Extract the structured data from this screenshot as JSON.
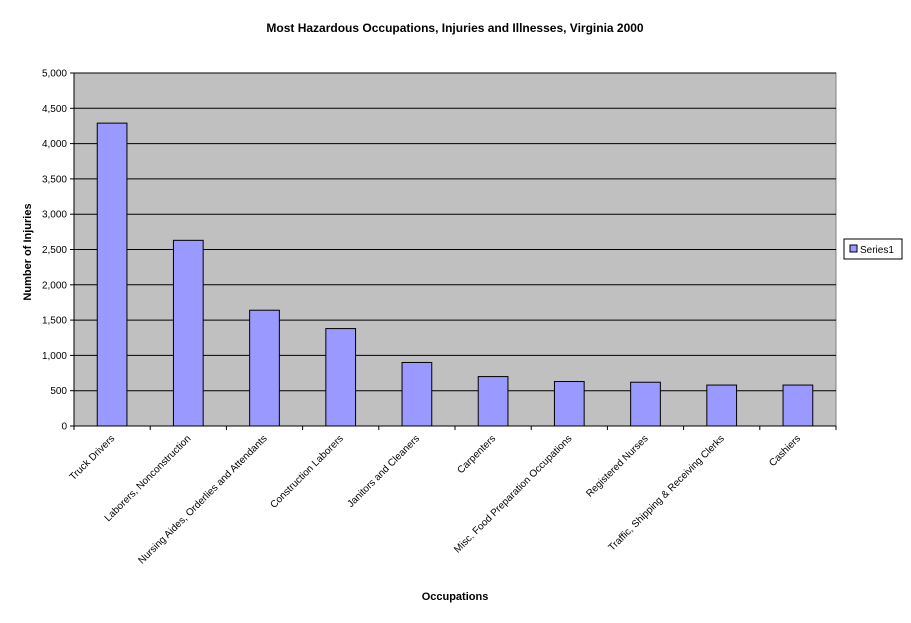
{
  "chart_data": {
    "type": "bar",
    "title": "Most Hazardous Occupations, Injuries and Illnesses, Virginia 2000",
    "xlabel": "Occupations",
    "ylabel": "Number of Injuries",
    "ylim": [
      0,
      5000
    ],
    "yticks": [
      "0",
      "500",
      "1,000",
      "1,500",
      "2,000",
      "2,500",
      "3,000",
      "3,500",
      "4,000",
      "4,500",
      "5,000"
    ],
    "grid": true,
    "legend_position": "right",
    "categories": [
      "Truck Drivers",
      "Laborers, Nonconstruction",
      "Nursing Aides, Orderlies and Attendants",
      "Construction Laborers",
      "Janitors and Cleaners",
      "Carpenters",
      "Misc. Food Preparation Occupations",
      "Registered Nurses",
      "Traffic, Shipping & Receiving Clerks",
      "Cashiers"
    ],
    "series": [
      {
        "name": "Series1",
        "values": [
          4290,
          2630,
          1640,
          1380,
          900,
          700,
          630,
          620,
          580,
          580
        ]
      }
    ],
    "colors": {
      "bar": "#9999ff",
      "plot_bg": "#c0c0c0",
      "grid": "#000000"
    }
  }
}
